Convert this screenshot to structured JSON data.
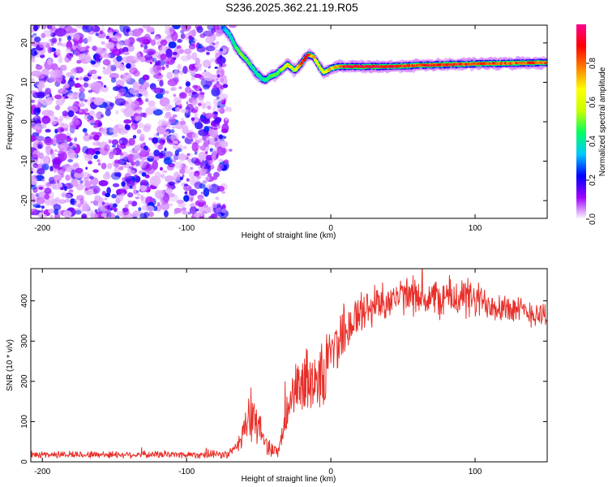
{
  "title": "S236.2025.362.21.19.R05",
  "chart_data": [
    {
      "type": "heatmap",
      "name": "spectrogram",
      "xlabel": "Height of straight line (km)",
      "ylabel": "Frequency (Hz)",
      "xlim": [
        -208,
        150
      ],
      "ylim": [
        -24.5,
        24.5
      ],
      "x_ticks": [
        -200,
        -100,
        0,
        100
      ],
      "x_tick_labels": [
        "-200",
        "-100",
        "0",
        "100"
      ],
      "y_ticks": [
        -20,
        -10,
        0,
        10,
        20
      ],
      "y_tick_labels": [
        "-20",
        "-10",
        "0",
        "10",
        "20"
      ],
      "noise_region_x": [
        -208,
        -72
      ],
      "trace": {
        "description_points_x": [
          -75,
          -70,
          -66,
          -62,
          -58,
          -55,
          -52,
          -48,
          -45,
          -42,
          -38,
          -35,
          -30,
          -25,
          -20,
          -16,
          -12,
          -8,
          -5,
          -2,
          0,
          5,
          10,
          20,
          30,
          40,
          60,
          80,
          100,
          120,
          150
        ],
        "frequency_hz": [
          24,
          22,
          19,
          17,
          15.5,
          14,
          12.5,
          11,
          10.5,
          11.5,
          12,
          13,
          14.5,
          13,
          15,
          17,
          16.5,
          14,
          12.5,
          13,
          13.5,
          14,
          14,
          14,
          14,
          14,
          14.3,
          14.5,
          14.7,
          14.8,
          15
        ],
        "amplitude": [
          0.3,
          0.4,
          0.5,
          0.55,
          0.5,
          0.45,
          0.4,
          0.42,
          0.45,
          0.48,
          0.5,
          0.55,
          0.7,
          0.6,
          0.9,
          0.95,
          0.75,
          0.6,
          0.65,
          0.7,
          0.75,
          0.8,
          0.95,
          0.98,
          0.97,
          0.95,
          0.9,
          0.92,
          0.88,
          0.85,
          0.85
        ]
      }
    },
    {
      "type": "colorbar",
      "name": "amplitude-colorbar",
      "label": "Normalized spectral amplitude",
      "range": [
        0,
        1
      ],
      "ticks": [
        0.0,
        0.2,
        0.4,
        0.6,
        0.8
      ],
      "tick_labels": [
        "0.0",
        "0.2",
        "0.4",
        "0.6",
        "0.8"
      ],
      "color_stops": [
        "#ffffff",
        "#a000ff",
        "#0000ff",
        "#00c8ff",
        "#00ff60",
        "#c8ff00",
        "#ffff00",
        "#ff8000",
        "#ff0000",
        "#ff0090"
      ]
    },
    {
      "type": "line",
      "name": "snr-plot",
      "xlabel": "Height of straight line (km)",
      "ylabel": "SNR (10 * v/v)",
      "xlim": [
        -208,
        150
      ],
      "ylim": [
        0,
        480
      ],
      "x_ticks": [
        -200,
        -100,
        0,
        100
      ],
      "x_tick_labels": [
        "-200",
        "-100",
        "0",
        "100"
      ],
      "y_ticks": [
        0,
        100,
        200,
        300,
        400
      ],
      "y_tick_labels": [
        "0",
        "100",
        "200",
        "300",
        "400"
      ],
      "color": "#e8302a",
      "series": {
        "name": "SNR",
        "x": [
          -208,
          -150,
          -100,
          -72,
          -66,
          -62,
          -58,
          -55,
          -52,
          -48,
          -45,
          -40,
          -36,
          -32,
          -30,
          -28,
          -25,
          -20,
          -15,
          -10,
          -5,
          -3,
          0,
          5,
          10,
          20,
          30,
          40,
          50,
          60,
          70,
          80,
          90,
          100,
          110,
          120,
          130,
          140,
          150
        ],
        "mean": [
          18,
          18,
          18,
          18,
          30,
          70,
          100,
          110,
          95,
          70,
          45,
          30,
          25,
          90,
          130,
          160,
          170,
          185,
          205,
          215,
          200,
          230,
          270,
          305,
          330,
          365,
          390,
          405,
          410,
          408,
          405,
          408,
          410,
          400,
          395,
          385,
          375,
          370,
          365
        ],
        "spread": [
          10,
          10,
          10,
          12,
          20,
          50,
          70,
          80,
          60,
          45,
          30,
          20,
          20,
          50,
          60,
          70,
          80,
          90,
          100,
          100,
          90,
          120,
          100,
          90,
          80,
          70,
          60,
          55,
          50,
          50,
          55,
          60,
          65,
          55,
          50,
          45,
          40,
          40,
          40
        ]
      }
    }
  ]
}
